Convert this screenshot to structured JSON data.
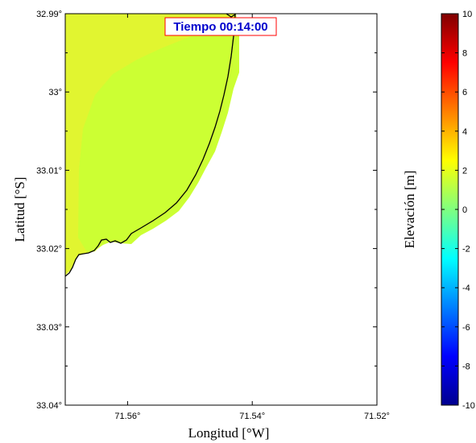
{
  "chart_data": {
    "type": "heatmap",
    "annotation": "Tiempo 00:14:00",
    "xlabel": "Longitud [°W]",
    "ylabel": "Latitud [°S]",
    "colorbar_label": "Elevación [m]",
    "x_tick_labels": [
      "71.56°",
      "71.54°",
      "71.52°"
    ],
    "x_ticks": [
      71.56,
      71.54,
      71.52
    ],
    "y_tick_labels": [
      "32.99°",
      "33°",
      "33.01°",
      "33.02°",
      "33.03°",
      "33.04°"
    ],
    "y_ticks": [
      32.99,
      33.0,
      33.01,
      33.02,
      33.03,
      33.04
    ],
    "xlim": [
      71.57,
      71.52
    ],
    "ylim": [
      32.99,
      33.04
    ],
    "colorbar_tick_labels": [
      "10",
      "8",
      "6",
      "4",
      "2",
      "0",
      "-2",
      "-4",
      "-6",
      "-8",
      "-10"
    ],
    "colorbar_ticks": [
      10,
      8,
      6,
      4,
      2,
      0,
      -2,
      -4,
      -6,
      -8,
      -10
    ],
    "clim": [
      -10,
      10
    ],
    "colormap": "jet",
    "water_elevation_inner_m": 0.9,
    "water_elevation_outer_m": 1.6,
    "colors": {
      "inner_water": "#ccff33",
      "outer_water": "#e1f530",
      "coastline": "#000000",
      "land": "#ffffff",
      "annotation_text": "#0000cc",
      "annotation_border": "#ff0000"
    }
  }
}
